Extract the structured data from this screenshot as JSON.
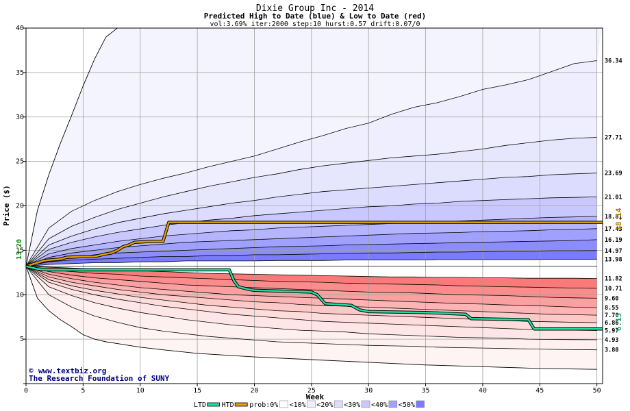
{
  "chart_data": {
    "type": "area",
    "title": "Dixie Group Inc - 2014",
    "subtitle": "Predicted High to Date (blue) &  Low to Date (red)",
    "params": "vol:3.69% iter:2000 step:10 hurst:0.57 drift:0.07/0",
    "xlabel": "Week",
    "ylabel": "Price ($)",
    "xlim": [
      0,
      50.5
    ],
    "ylim": [
      0,
      40
    ],
    "x_ticks": [
      0,
      5,
      10,
      15,
      20,
      25,
      30,
      35,
      40,
      45,
      50
    ],
    "y_ticks": [
      5,
      10,
      15,
      20,
      25,
      30,
      35,
      40
    ],
    "grid": true,
    "start_price": 13.2,
    "start_label": "13.20",
    "weeks": [
      0,
      2,
      4,
      6,
      8,
      10,
      12,
      14,
      16,
      18,
      20,
      22,
      24,
      26,
      28,
      30,
      32,
      34,
      36,
      38,
      40,
      42,
      44,
      46,
      48,
      50
    ],
    "upper_bands": [
      {
        "label": "13.98",
        "values": [
          13.2,
          13.4,
          13.5,
          13.6,
          13.6,
          13.7,
          13.7,
          13.8,
          13.8,
          13.8,
          13.8,
          13.85,
          13.85,
          13.85,
          13.9,
          13.9,
          13.9,
          13.9,
          13.95,
          13.95,
          13.95,
          13.95,
          13.95,
          13.98,
          13.98,
          13.98
        ]
      },
      {
        "label": "14.97",
        "values": [
          13.2,
          13.7,
          13.9,
          14.0,
          14.1,
          14.2,
          14.3,
          14.3,
          14.4,
          14.4,
          14.5,
          14.5,
          14.55,
          14.6,
          14.65,
          14.7,
          14.7,
          14.75,
          14.8,
          14.8,
          14.85,
          14.9,
          14.9,
          14.95,
          14.95,
          14.97
        ]
      },
      {
        "label": "16.19",
        "values": [
          13.2,
          13.9,
          14.2,
          14.5,
          14.7,
          14.8,
          14.9,
          15.0,
          15.1,
          15.2,
          15.3,
          15.4,
          15.45,
          15.5,
          15.6,
          15.65,
          15.7,
          15.75,
          15.8,
          15.85,
          15.9,
          15.95,
          16.0,
          16.05,
          16.1,
          16.19
        ]
      },
      {
        "label": "17.43",
        "values": [
          13.2,
          14.2,
          14.7,
          15.0,
          15.3,
          15.5,
          15.7,
          15.9,
          16.0,
          16.1,
          16.2,
          16.3,
          16.4,
          16.5,
          16.6,
          16.7,
          16.8,
          16.9,
          16.95,
          17.0,
          17.1,
          17.15,
          17.2,
          17.3,
          17.35,
          17.43
        ]
      },
      {
        "label": "18.81",
        "values": [
          13.2,
          14.6,
          15.2,
          15.6,
          16.0,
          16.3,
          16.6,
          16.8,
          17.0,
          17.2,
          17.3,
          17.5,
          17.6,
          17.7,
          17.8,
          17.9,
          18.0,
          18.1,
          18.2,
          18.3,
          18.4,
          18.5,
          18.6,
          18.7,
          18.75,
          18.81
        ]
      },
      {
        "label": "21.01",
        "values": [
          13.2,
          15.1,
          15.9,
          16.5,
          17.0,
          17.4,
          17.8,
          18.1,
          18.4,
          18.6,
          18.9,
          19.1,
          19.3,
          19.5,
          19.7,
          19.9,
          20.0,
          20.2,
          20.3,
          20.5,
          20.6,
          20.7,
          20.8,
          20.9,
          20.95,
          21.01
        ]
      },
      {
        "label": "23.69",
        "values": [
          13.2,
          15.6,
          16.6,
          17.4,
          18.1,
          18.6,
          19.1,
          19.5,
          19.9,
          20.3,
          20.6,
          21.0,
          21.3,
          21.6,
          21.8,
          22.0,
          22.2,
          22.4,
          22.6,
          22.8,
          23.0,
          23.2,
          23.3,
          23.5,
          23.6,
          23.69
        ]
      },
      {
        "label": "27.71",
        "values": [
          13.2,
          16.3,
          17.7,
          18.7,
          19.6,
          20.3,
          21.0,
          21.6,
          22.2,
          22.7,
          23.2,
          23.6,
          24.1,
          24.5,
          24.8,
          25.1,
          25.4,
          25.6,
          25.8,
          26.1,
          26.4,
          26.8,
          27.1,
          27.4,
          27.6,
          27.71
        ]
      },
      {
        "label": "36.34",
        "values": [
          13.2,
          17.5,
          19.4,
          20.6,
          21.6,
          22.4,
          23.1,
          23.7,
          24.4,
          25.0,
          25.6,
          26.4,
          27.2,
          27.9,
          28.7,
          29.3,
          30.3,
          31.1,
          31.6,
          32.3,
          33.1,
          33.6,
          34.2,
          35.1,
          36.0,
          36.34
        ]
      }
    ],
    "lower_bands": [
      {
        "label": "11.82",
        "values": [
          13.2,
          13.1,
          13.0,
          12.9,
          12.8,
          12.7,
          12.6,
          12.5,
          12.4,
          12.35,
          12.3,
          12.25,
          12.2,
          12.15,
          12.1,
          12.05,
          12.0,
          12.0,
          11.95,
          11.95,
          11.9,
          11.9,
          11.85,
          11.85,
          11.85,
          11.82
        ]
      },
      {
        "label": "10.71",
        "values": [
          13.2,
          12.8,
          12.6,
          12.4,
          12.3,
          12.1,
          12.0,
          11.9,
          11.8,
          11.7,
          11.6,
          11.5,
          11.45,
          11.4,
          11.3,
          11.25,
          11.2,
          11.15,
          11.1,
          11.0,
          10.95,
          10.9,
          10.85,
          10.8,
          10.75,
          10.71
        ]
      },
      {
        "label": "9.60",
        "values": [
          13.2,
          12.6,
          12.2,
          11.9,
          11.7,
          11.5,
          11.3,
          11.1,
          11.0,
          10.9,
          10.8,
          10.7,
          10.6,
          10.5,
          10.4,
          10.3,
          10.25,
          10.2,
          10.1,
          10.0,
          9.95,
          9.9,
          9.8,
          9.7,
          9.65,
          9.6
        ]
      },
      {
        "label": "8.55",
        "values": [
          13.2,
          12.3,
          11.8,
          11.4,
          11.1,
          10.8,
          10.6,
          10.4,
          10.2,
          10.0,
          9.9,
          9.8,
          9.7,
          9.6,
          9.5,
          9.4,
          9.3,
          9.2,
          9.1,
          9.0,
          8.95,
          8.85,
          8.8,
          8.7,
          8.6,
          8.55
        ]
      },
      {
        "label": "7.70",
        "values": [
          13.2,
          12.0,
          11.4,
          11.0,
          10.6,
          10.3,
          10.0,
          9.8,
          9.6,
          9.4,
          9.2,
          9.1,
          8.9,
          8.8,
          8.7,
          8.6,
          8.5,
          8.4,
          8.3,
          8.2,
          8.1,
          8.0,
          7.9,
          7.8,
          7.75,
          7.7
        ]
      },
      {
        "label": "6.86",
        "values": [
          13.2,
          11.7,
          11.0,
          10.5,
          10.1,
          9.7,
          9.4,
          9.1,
          8.8,
          8.6,
          8.4,
          8.2,
          8.1,
          7.9,
          7.8,
          7.7,
          7.6,
          7.5,
          7.4,
          7.3,
          7.2,
          7.1,
          7.0,
          6.95,
          6.9,
          6.86
        ]
      },
      {
        "label": "5.97",
        "values": [
          13.2,
          11.4,
          10.6,
          10.0,
          9.5,
          9.1,
          8.7,
          8.4,
          8.1,
          7.8,
          7.6,
          7.4,
          7.2,
          7.0,
          6.9,
          6.8,
          6.7,
          6.6,
          6.5,
          6.4,
          6.3,
          6.2,
          6.1,
          6.05,
          6.0,
          5.97
        ]
      },
      {
        "label": "4.93",
        "values": [
          13.2,
          10.9,
          9.9,
          9.1,
          8.5,
          8.0,
          7.6,
          7.2,
          6.9,
          6.6,
          6.4,
          6.2,
          6.0,
          5.9,
          5.8,
          5.6,
          5.5,
          5.4,
          5.3,
          5.2,
          5.15,
          5.1,
          5.0,
          4.97,
          4.95,
          4.93
        ]
      },
      {
        "label": "3.80",
        "values": [
          13.2,
          10.0,
          8.6,
          7.6,
          6.9,
          6.3,
          5.9,
          5.6,
          5.3,
          5.1,
          4.9,
          4.7,
          4.6,
          4.5,
          4.4,
          4.3,
          4.25,
          4.2,
          4.1,
          4.05,
          4.0,
          3.95,
          3.9,
          3.85,
          3.82,
          3.8
        ]
      }
    ],
    "outer_upper": {
      "x": [
        0,
        1,
        2,
        3,
        4,
        5,
        6,
        7,
        8
      ],
      "values": [
        13.2,
        19.5,
        23.5,
        27.0,
        30.2,
        33.5,
        36.5,
        39.0,
        40.0
      ]
    },
    "outer_lower": {
      "x": [
        0,
        1,
        2,
        3,
        4,
        5,
        6,
        7,
        8,
        10,
        12,
        15,
        20,
        25,
        30,
        35,
        40,
        45,
        50
      ],
      "values": [
        13.2,
        9.6,
        8.2,
        7.2,
        6.4,
        5.5,
        5.0,
        4.7,
        4.5,
        4.1,
        3.8,
        3.4,
        3.0,
        2.7,
        2.4,
        2.1,
        1.9,
        1.7,
        1.6
      ]
    },
    "mid_line": {
      "label": "",
      "values": [
        13.2,
        13.2
      ]
    },
    "htd_series": {
      "name": "HTD",
      "x": [
        0,
        0.5,
        1.0,
        1.5,
        2.0,
        3.0,
        3.5,
        5.0,
        6.0,
        7.0,
        7.5,
        8.0,
        8.5,
        9.0,
        9.5,
        11.0,
        12.0,
        12.5,
        50.5
      ],
      "values": [
        13.2,
        13.4,
        13.6,
        13.8,
        13.9,
        14.0,
        14.2,
        14.3,
        14.3,
        14.6,
        14.7,
        15.0,
        15.4,
        15.6,
        15.9,
        16.0,
        16.0,
        18.14,
        18.14
      ],
      "end_label": "18.14",
      "color": "#e0a000"
    },
    "ltd_series": {
      "name": "LTD",
      "x": [
        0,
        1,
        2,
        5,
        8,
        10,
        12,
        14,
        17.8,
        18.2,
        18.6,
        19.5,
        20,
        25,
        25.5,
        26.2,
        28.5,
        29.2,
        30,
        35,
        38.5,
        39,
        44,
        44.5,
        50.5
      ],
      "values": [
        13.2,
        12.9,
        12.8,
        12.8,
        12.8,
        12.8,
        12.8,
        12.8,
        12.8,
        11.6,
        10.9,
        10.6,
        10.5,
        10.3,
        10.0,
        9.0,
        8.8,
        8.3,
        8.1,
        8.0,
        7.8,
        7.3,
        7.2,
        6.15,
        6.15
      ],
      "end_label": "6.15",
      "color": "#20e0a0"
    },
    "band_colors_upper": [
      "#7b7bff",
      "#8c8cff",
      "#a0a0ff",
      "#b4b4ff",
      "#c8c8ff",
      "#dcdcff",
      "#e6e6fc",
      "#eeeefe"
    ],
    "band_colors_lower": [
      "#fa7a7a",
      "#fa8c8c",
      "#fba0a0",
      "#fcb4b4",
      "#fcc8c8",
      "#fddcdc",
      "#fee6e6",
      "#fff0f0"
    ],
    "legend": [
      {
        "label": "LTD",
        "swatch": "line",
        "color": "#20e0a0"
      },
      {
        "label": "HTD",
        "swatch": "line",
        "color": "#e0a000"
      },
      {
        "label": "prob:0%",
        "swatch": "box",
        "color": "#ffffff"
      },
      {
        "label": "<10%",
        "swatch": "box",
        "color": "#eeeefe"
      },
      {
        "label": "<20%",
        "swatch": "box",
        "color": "#dcdcff"
      },
      {
        "label": "<30%",
        "swatch": "box",
        "color": "#c8c8ff"
      },
      {
        "label": "<40%",
        "swatch": "box",
        "color": "#a0a0ff"
      },
      {
        "label": "<50%",
        "swatch": "box",
        "color": "#7b7bff"
      }
    ]
  },
  "credit": {
    "line1": "www.textbiz.org",
    "line2": "The Research Foundation of SUNY",
    "copyright_symbol": "©"
  }
}
